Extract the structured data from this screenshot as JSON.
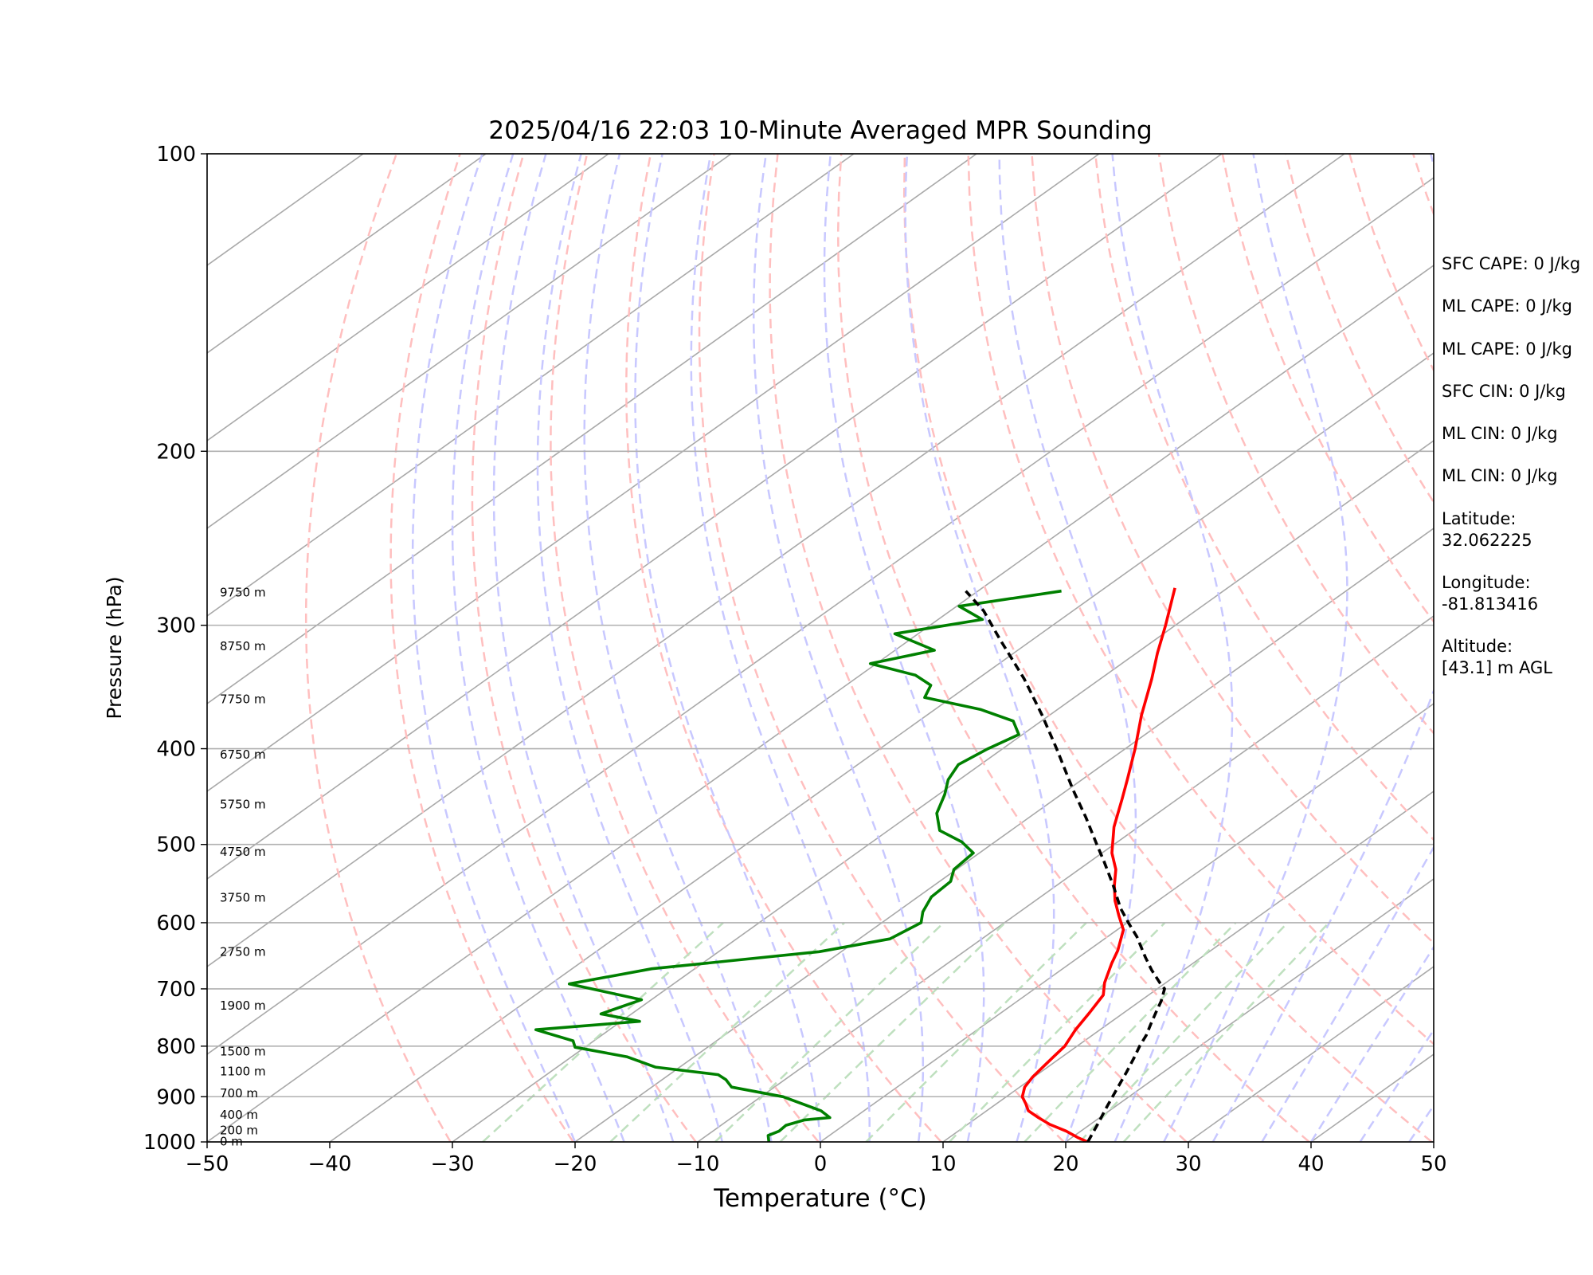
{
  "chart_data": {
    "type": "line",
    "title": "2025/04/16 22:03 10-Minute Averaged MPR Sounding",
    "xlabel": "Temperature (°C)",
    "ylabel": "Pressure (hPa)",
    "xlim": [
      -50,
      50
    ],
    "ylim": [
      1000,
      100
    ],
    "yscale": "log",
    "skew": "skew-T log-P",
    "x_ticks": [
      "−50",
      "−40",
      "−30",
      "−20",
      "−10",
      "0",
      "10",
      "20",
      "30",
      "40",
      "50"
    ],
    "y_ticks": [
      "100",
      "200",
      "300",
      "400",
      "500",
      "600",
      "700",
      "800",
      "900",
      "1000"
    ],
    "grid": "horizontal at labeled pressures",
    "series": [
      {
        "role": "temperature",
        "color": "#ff0000",
        "points": [
          [
            1000,
            21.8
          ],
          [
            990,
            20.5
          ],
          [
            975,
            18.8
          ],
          [
            960,
            16.7
          ],
          [
            945,
            15.0
          ],
          [
            930,
            13.4
          ],
          [
            915,
            12.4
          ],
          [
            900,
            11.3
          ],
          [
            880,
            10.4
          ],
          [
            860,
            9.9
          ],
          [
            840,
            9.6
          ],
          [
            820,
            9.3
          ],
          [
            800,
            9.0
          ],
          [
            770,
            8.0
          ],
          [
            740,
            7.2
          ],
          [
            710,
            6.3
          ],
          [
            690,
            5.0
          ],
          [
            660,
            3.4
          ],
          [
            640,
            2.4
          ],
          [
            610,
            0.5
          ],
          [
            590,
            -1.5
          ],
          [
            570,
            -3.5
          ],
          [
            550,
            -5.3
          ],
          [
            530,
            -7.0
          ],
          [
            510,
            -9.2
          ],
          [
            480,
            -12.0
          ],
          [
            450,
            -14.5
          ],
          [
            430,
            -16.3
          ],
          [
            400,
            -19.2
          ],
          [
            370,
            -22.5
          ],
          [
            340,
            -25.8
          ],
          [
            320,
            -28.3
          ],
          [
            300,
            -30.8
          ],
          [
            275,
            -34.3
          ]
        ]
      },
      {
        "role": "dewpoint",
        "color": "#008000",
        "points": [
          [
            1000,
            -4.2
          ],
          [
            985,
            -5.0
          ],
          [
            975,
            -4.6
          ],
          [
            962,
            -4.7
          ],
          [
            950,
            -3.8
          ],
          [
            945,
            -2.0
          ],
          [
            930,
            -3.5
          ],
          [
            900,
            -8.2
          ],
          [
            880,
            -13.5
          ],
          [
            865,
            -14.8
          ],
          [
            855,
            -16.0
          ],
          [
            840,
            -22.0
          ],
          [
            820,
            -25.5
          ],
          [
            802,
            -30.8
          ],
          [
            790,
            -31.7
          ],
          [
            770,
            -36.0
          ],
          [
            755,
            -28.5
          ],
          [
            742,
            -32.5
          ],
          [
            718,
            -30.8
          ],
          [
            692,
            -38.5
          ],
          [
            668,
            -33.5
          ],
          [
            642,
            -21.8
          ],
          [
            623,
            -17.5
          ],
          [
            600,
            -16.8
          ],
          [
            585,
            -17.9
          ],
          [
            565,
            -18.9
          ],
          [
            545,
            -19.1
          ],
          [
            530,
            -20.2
          ],
          [
            510,
            -20.5
          ],
          [
            497,
            -22.7
          ],
          [
            484,
            -25.8
          ],
          [
            465,
            -28.0
          ],
          [
            445,
            -29.5
          ],
          [
            430,
            -30.9
          ],
          [
            415,
            -31.8
          ],
          [
            400,
            -31.2
          ],
          [
            387,
            -30.3
          ],
          [
            375,
            -32.3
          ],
          [
            365,
            -36.3
          ],
          [
            355,
            -42.2
          ],
          [
            345,
            -43.1
          ],
          [
            337,
            -45.5
          ],
          [
            328,
            -50.5
          ],
          [
            318,
            -46.8
          ],
          [
            306,
            -51.9
          ],
          [
            296,
            -46.4
          ],
          [
            287,
            -49.8
          ],
          [
            277,
            -43.2
          ]
        ]
      },
      {
        "role": "parcel",
        "color": "#000000",
        "dashed": true,
        "points": [
          [
            1000,
            21.8
          ],
          [
            960,
            20.6
          ],
          [
            920,
            19.3
          ],
          [
            880,
            18.0
          ],
          [
            850,
            17.0
          ],
          [
            820,
            15.9
          ],
          [
            800,
            15.1
          ],
          [
            780,
            14.4
          ],
          [
            760,
            13.5
          ],
          [
            740,
            12.6
          ],
          [
            720,
            11.7
          ],
          [
            700,
            10.6
          ],
          [
            690,
            9.5
          ],
          [
            670,
            7.4
          ],
          [
            650,
            5.4
          ],
          [
            620,
            2.4
          ],
          [
            600,
            0.1
          ],
          [
            580,
            -2.2
          ],
          [
            550,
            -5.4
          ],
          [
            520,
            -8.9
          ],
          [
            500,
            -11.4
          ],
          [
            470,
            -15.3
          ],
          [
            440,
            -19.6
          ],
          [
            400,
            -25.6
          ],
          [
            370,
            -30.6
          ],
          [
            340,
            -36.2
          ],
          [
            310,
            -42.7
          ],
          [
            290,
            -47.3
          ],
          [
            277,
            -51.0
          ]
        ]
      }
    ],
    "height_labels": [
      "9750 m",
      "8750 m",
      "7750 m",
      "6750 m",
      "5750 m",
      "4750 m",
      "3750 m",
      "2750 m",
      "1900 m",
      "1500 m",
      "1100 m",
      "700 m",
      "400 m",
      "200 m",
      "0 m"
    ],
    "annotations": [
      "SFC CAPE: 0 J/kg",
      "ML CAPE: 0 J/kg",
      "ML CAPE: 0 J/kg",
      "SFC CIN: 0 J/kg",
      "ML CIN: 0 J/kg",
      "ML CIN: 0 J/kg",
      "Latitude:\n32.062225",
      "Longitude:\n-81.813416",
      "Altitude:\n[43.1] m AGL"
    ]
  },
  "colors": {
    "isotherm": "#a9a9a9",
    "dry_adiabat": "#ffbfbf",
    "moist_adiabat": "#c8c8ff",
    "mixing_ratio": "#bfe0bf"
  }
}
